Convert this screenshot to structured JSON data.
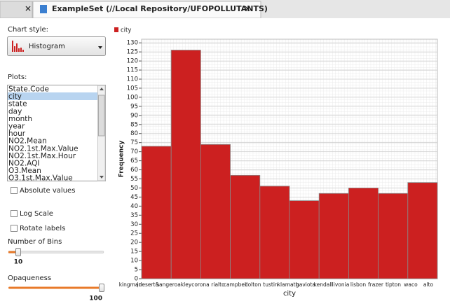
{
  "tab_title": "ExampleSet (//Local Repository/UFOPOLLUTANTS)",
  "controls": {
    "chart_style_label": "Chart style:",
    "chart_style": "Histogram",
    "plots_label": "Plots:",
    "plots": [
      "State.Code",
      "city",
      "state",
      "day",
      "month",
      "year",
      "hour",
      "NO2.Mean",
      "NO2.1st.Max.Value",
      "NO2.1st.Max.Hour",
      "NO2.AQI",
      "O3.Mean",
      "O3.1st.Max.Value"
    ],
    "absolute_values": "Absolute values",
    "log_scale": "Log Scale",
    "rotate_labels": "Rotate labels",
    "bins_label": "Number of Bins",
    "bins": 10,
    "opaqueness_label": "Opaqueness",
    "opaqueness": 100
  },
  "chart_data": {
    "type": "bar",
    "xlabel": "city",
    "ylabel": "Frequency",
    "series": [
      {
        "name": "city",
        "color": "#cc2020",
        "values": [
          73,
          126,
          74,
          57,
          51,
          43,
          47,
          50,
          47,
          53
        ]
      }
    ],
    "x_labels": [
      "kingman",
      "(desert&",
      "sanger",
      "oakley",
      "corona",
      "rialto",
      "campbell",
      "colton",
      "tustin",
      "klamath",
      "gaviota",
      "kendall",
      "livonia",
      "lisbon",
      "frazer",
      "tipton",
      "waco",
      "alto"
    ],
    "ylim": [
      0,
      132
    ],
    "yticks": [
      0,
      5,
      10,
      15,
      20,
      25,
      30,
      35,
      40,
      45,
      50,
      55,
      60,
      65,
      70,
      75,
      80,
      85,
      90,
      95,
      100,
      105,
      110,
      115,
      120,
      125,
      130
    ],
    "grid": true
  }
}
